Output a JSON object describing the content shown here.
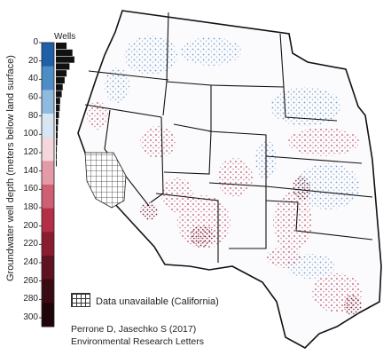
{
  "legend": {
    "axis_title": "Groundwater well depth (meters below land surface)",
    "wells_label": "Wells",
    "ticks": [
      "0",
      "20",
      "40",
      "60",
      "80",
      "100",
      "120",
      "140",
      "160",
      "180",
      "200",
      "220",
      "240",
      "260",
      "280",
      "300"
    ],
    "colormap": [
      "#1f5fa8",
      "#4d8cc4",
      "#8fbadf",
      "#d6e6f2",
      "#f3d7dc",
      "#e59aa8",
      "#cf5f73",
      "#b22f45",
      "#8a1c2f",
      "#5f1220",
      "#3a0b13",
      "#1d0508"
    ],
    "histogram_fraction": [
      0.55,
      0.85,
      0.95,
      0.7,
      0.55,
      0.45,
      0.35,
      0.3,
      0.22,
      0.2,
      0.16,
      0.12,
      0.1,
      0.09,
      0.07,
      0.05,
      0.04,
      0.03
    ]
  },
  "no_data_legend": {
    "label": "Data unavailable (California)"
  },
  "credit": {
    "line1": "Perrone D, Jasechko S (2017)",
    "line2": "Environmental Research Letters"
  }
}
